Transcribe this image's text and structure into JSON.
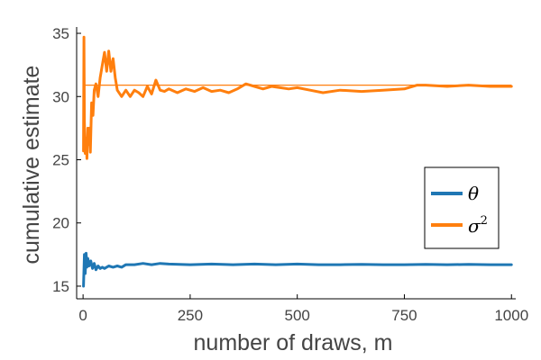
{
  "chart_data": {
    "type": "line",
    "title": "",
    "xlabel": "number of draws, m",
    "ylabel": "cumulative estimate",
    "xlim": [
      -15,
      1010
    ],
    "ylim": [
      14,
      35.5
    ],
    "xticks": [
      0,
      250,
      500,
      750,
      1000
    ],
    "yticks": [
      15,
      20,
      25,
      30,
      35
    ],
    "grid": false,
    "legend_position": "right",
    "series": [
      {
        "name": "θ",
        "color": "#1f77b4",
        "x": [
          1,
          3,
          5,
          7,
          9,
          11,
          14,
          18,
          22,
          26,
          30,
          35,
          40,
          45,
          50,
          60,
          70,
          80,
          90,
          100,
          120,
          140,
          160,
          180,
          200,
          250,
          300,
          350,
          400,
          450,
          500,
          550,
          600,
          650,
          700,
          750,
          800,
          850,
          900,
          950,
          1000
        ],
        "values": [
          15.0,
          17.5,
          16.0,
          17.6,
          16.5,
          17.2,
          16.6,
          17.0,
          16.4,
          16.8,
          16.3,
          16.6,
          16.4,
          16.5,
          16.4,
          16.6,
          16.5,
          16.6,
          16.5,
          16.7,
          16.7,
          16.8,
          16.7,
          16.8,
          16.75,
          16.7,
          16.75,
          16.7,
          16.75,
          16.7,
          16.75,
          16.7,
          16.7,
          16.72,
          16.7,
          16.7,
          16.72,
          16.7,
          16.72,
          16.7,
          16.7
        ]
      },
      {
        "name": "σ2",
        "color": "#ff7f0e",
        "x": [
          1,
          2,
          3,
          5,
          7,
          9,
          11,
          13,
          15,
          17,
          20,
          23,
          26,
          30,
          35,
          40,
          45,
          50,
          55,
          60,
          65,
          70,
          75,
          80,
          90,
          100,
          110,
          120,
          130,
          140,
          150,
          160,
          170,
          180,
          190,
          200,
          220,
          240,
          260,
          280,
          300,
          320,
          340,
          360,
          380,
          400,
          420,
          440,
          460,
          480,
          500,
          530,
          560,
          600,
          650,
          700,
          750,
          780,
          800,
          850,
          900,
          950,
          1000
        ],
        "values": [
          25.7,
          34.7,
          28.0,
          25.5,
          26.7,
          25.1,
          27.5,
          26.2,
          27.5,
          25.6,
          29.5,
          28.5,
          30.5,
          31.0,
          30.0,
          31.5,
          32.5,
          33.5,
          32.0,
          33.6,
          32.0,
          33.0,
          31.5,
          30.5,
          30.0,
          30.5,
          30.0,
          30.5,
          30.3,
          30.0,
          30.8,
          30.2,
          31.3,
          30.5,
          30.4,
          30.6,
          30.3,
          30.6,
          30.4,
          30.7,
          30.4,
          30.5,
          30.3,
          30.6,
          31.0,
          30.8,
          30.6,
          30.8,
          30.7,
          30.6,
          30.7,
          30.5,
          30.3,
          30.5,
          30.4,
          30.5,
          30.6,
          30.9,
          30.9,
          30.8,
          30.9,
          30.8,
          30.8
        ]
      }
    ],
    "reference_lines": [
      {
        "color": "#ff7f0e",
        "value": 30.9,
        "x_range": [
          1,
          1000
        ]
      }
    ]
  }
}
